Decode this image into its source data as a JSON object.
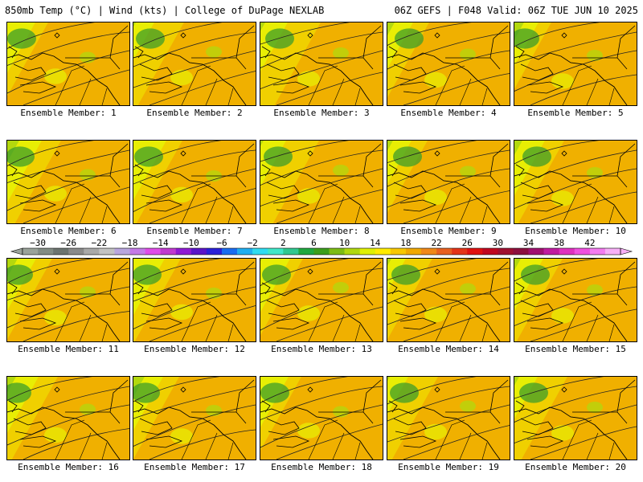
{
  "header": {
    "left": "850mb Temp (°C) | Wind (kts) | College of DuPage NEXLAB",
    "right": "06Z GEFS | F048 Valid: 06Z TUE JUN 10 2025"
  },
  "panels": [
    {
      "label": "Ensemble Member: 1",
      "max_temp_c": 18
    },
    {
      "label": "Ensemble Member: 2",
      "max_temp_c": 17
    },
    {
      "label": "Ensemble Member: 3",
      "max_temp_c": 16
    },
    {
      "label": "Ensemble Member: 4",
      "max_temp_c": 17
    },
    {
      "label": "Ensemble Member: 5",
      "max_temp_c": 18
    },
    {
      "label": "Ensemble Member: 6",
      "max_temp_c": 16
    },
    {
      "label": "Ensemble Member: 7",
      "max_temp_c": 17
    },
    {
      "label": "Ensemble Member: 8",
      "max_temp_c": 16
    },
    {
      "label": "Ensemble Member: 9",
      "max_temp_c": 17
    },
    {
      "label": "Ensemble Member: 10",
      "max_temp_c": 16
    },
    {
      "label": "Ensemble Member: 11",
      "max_temp_c": 17
    },
    {
      "label": "Ensemble Member: 12",
      "max_temp_c": 17
    },
    {
      "label": "Ensemble Member: 13",
      "max_temp_c": 18
    },
    {
      "label": "Ensemble Member: 14",
      "max_temp_c": 18
    },
    {
      "label": "Ensemble Member: 15",
      "max_temp_c": 16
    },
    {
      "label": "Ensemble Member: 16",
      "max_temp_c": 16
    },
    {
      "label": "Ensemble Member: 17",
      "max_temp_c": 17
    },
    {
      "label": "Ensemble Member: 18",
      "max_temp_c": 18
    },
    {
      "label": "Ensemble Member: 19",
      "max_temp_c": 17
    },
    {
      "label": "Ensemble Member: 20",
      "max_temp_c": 17
    }
  ],
  "colorbar": {
    "tick_labels": [
      "−30",
      "−26",
      "−22",
      "−18",
      "−14",
      "−10",
      "−6",
      "−2",
      "2",
      "6",
      "10",
      "14",
      "18",
      "22",
      "26",
      "30",
      "34",
      "38",
      "42"
    ],
    "colors": [
      "#9aa39a",
      "#828c84",
      "#6c7470",
      "#8a8a8a",
      "#a9a9a9",
      "#c3c3c3",
      "#b9a6de",
      "#c47ae8",
      "#e04ce8",
      "#c03ad0",
      "#8f1ad4",
      "#5a14c8",
      "#2a20d8",
      "#1a6cf0",
      "#20aef0",
      "#30dcf0",
      "#40e8c8",
      "#30c890",
      "#20a840",
      "#3c9e1c",
      "#7cbc14",
      "#b0d80e",
      "#e0f004",
      "#ffec00",
      "#f8c800",
      "#f0a800",
      "#f08818",
      "#e86020",
      "#e43418",
      "#e01010",
      "#c00820",
      "#a01030",
      "#8c1040",
      "#a01070",
      "#c01ca0",
      "#e030c0",
      "#f050e0",
      "#f47cf0",
      "#f8b0f8"
    ]
  },
  "colors": {
    "cool_green": "#3d9d2a",
    "mid_green": "#7dc015",
    "yellow_green": "#b3d80e",
    "yellow": "#e8ee04",
    "yellow_orange": "#f0d000",
    "orange": "#f0b000"
  }
}
